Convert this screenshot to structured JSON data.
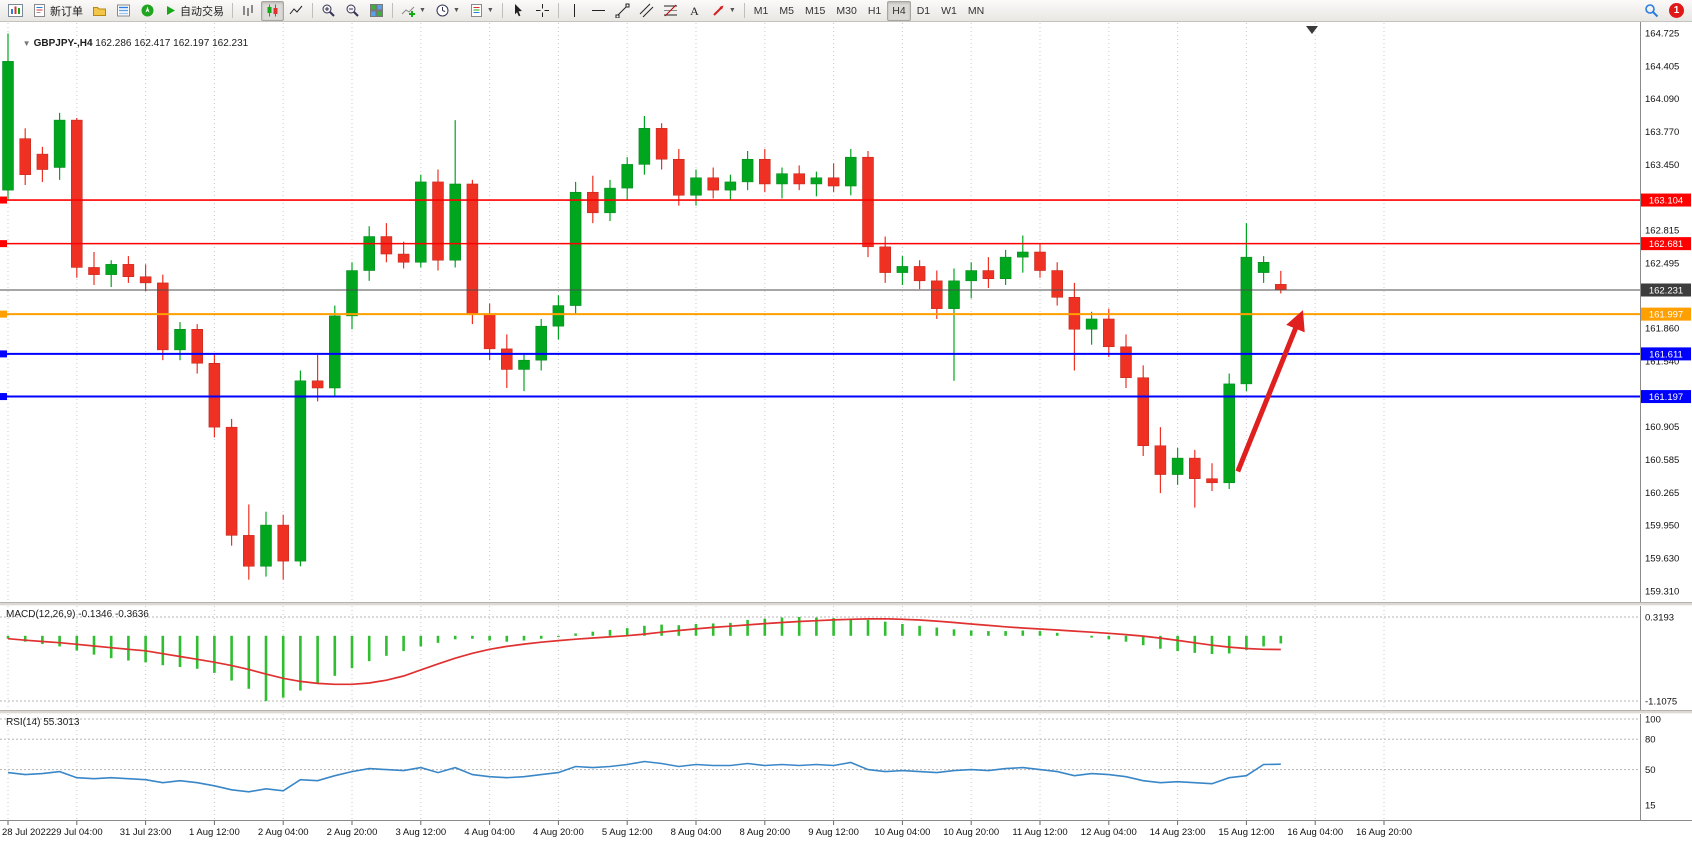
{
  "ui": {
    "caret": "▼",
    "expander": "▼"
  },
  "toolbar": {
    "new_order_label": "新订单",
    "auto_trading_label": "自动交易",
    "timeframes": [
      "M1",
      "M5",
      "M15",
      "M30",
      "H1",
      "H4",
      "D1",
      "W1",
      "MN"
    ],
    "active_timeframe": "H4",
    "notification_count": "1"
  },
  "chart": {
    "symbol_label": "GBPJPY-,H4",
    "ohlc_label": "162.286 162.417 162.197 162.231",
    "macd_header": "MACD(12,26,9) -0.1346 -0.3636",
    "rsi_header": "RSI(14) 55.3013",
    "colors": {
      "bull": "#00a71e",
      "bull_edge": "#00821a",
      "bear": "#ef3124",
      "bear_edge": "#bb2218",
      "macd_hist": "#2fbe2f",
      "macd_signal": "#e03131",
      "rsi_line": "#3a87c8",
      "grid": "#c9c9c9",
      "level": "#b5b5b5",
      "arrow": "#e01f1f",
      "bid_line": "#4d4d4d",
      "bid_box": "#3d3d3d"
    }
  },
  "chart_data": {
    "type": "candlestick",
    "symbol": "GBPJPY-",
    "timeframe": "H4",
    "candles": [
      [
        163.2,
        164.72,
        163.1,
        164.45
      ],
      [
        163.7,
        163.8,
        163.25,
        163.35
      ],
      [
        163.55,
        163.62,
        163.28,
        163.4
      ],
      [
        163.42,
        163.95,
        163.3,
        163.88
      ],
      [
        163.88,
        163.9,
        162.35,
        162.45
      ],
      [
        162.45,
        162.6,
        162.28,
        162.38
      ],
      [
        162.38,
        162.52,
        162.26,
        162.48
      ],
      [
        162.48,
        162.56,
        162.3,
        162.36
      ],
      [
        162.36,
        162.48,
        162.22,
        162.3
      ],
      [
        162.3,
        162.38,
        161.55,
        161.65
      ],
      [
        161.65,
        161.92,
        161.55,
        161.85
      ],
      [
        161.85,
        161.9,
        161.42,
        161.52
      ],
      [
        161.52,
        161.62,
        160.8,
        160.9
      ],
      [
        160.9,
        160.98,
        159.75,
        159.85
      ],
      [
        159.85,
        160.15,
        159.42,
        159.55
      ],
      [
        159.55,
        160.08,
        159.45,
        159.95
      ],
      [
        159.95,
        160.05,
        159.42,
        159.6
      ],
      [
        159.6,
        161.45,
        159.55,
        161.35
      ],
      [
        161.35,
        161.6,
        161.15,
        161.28
      ],
      [
        161.28,
        162.08,
        161.2,
        161.98
      ],
      [
        161.98,
        162.5,
        161.85,
        162.42
      ],
      [
        162.42,
        162.85,
        162.32,
        162.75
      ],
      [
        162.75,
        162.88,
        162.5,
        162.58
      ],
      [
        162.58,
        162.7,
        162.44,
        162.5
      ],
      [
        162.5,
        163.35,
        162.45,
        163.28
      ],
      [
        163.28,
        163.4,
        162.42,
        162.52
      ],
      [
        162.52,
        163.88,
        162.45,
        163.26
      ],
      [
        163.26,
        163.3,
        161.9,
        162.0
      ],
      [
        162.0,
        162.1,
        161.55,
        161.66
      ],
      [
        161.66,
        161.8,
        161.28,
        161.46
      ],
      [
        161.46,
        161.62,
        161.25,
        161.55
      ],
      [
        161.55,
        161.95,
        161.45,
        161.88
      ],
      [
        161.88,
        162.18,
        161.75,
        162.08
      ],
      [
        162.08,
        163.28,
        162.0,
        163.18
      ],
      [
        163.18,
        163.34,
        162.88,
        162.98
      ],
      [
        162.98,
        163.3,
        162.9,
        163.22
      ],
      [
        163.22,
        163.52,
        163.1,
        163.45
      ],
      [
        163.45,
        163.92,
        163.35,
        163.8
      ],
      [
        163.8,
        163.85,
        163.4,
        163.5
      ],
      [
        163.5,
        163.6,
        163.05,
        163.15
      ],
      [
        163.15,
        163.4,
        163.05,
        163.32
      ],
      [
        163.32,
        163.42,
        163.12,
        163.2
      ],
      [
        163.2,
        163.35,
        163.1,
        163.28
      ],
      [
        163.28,
        163.58,
        163.2,
        163.5
      ],
      [
        163.5,
        163.6,
        163.18,
        163.26
      ],
      [
        163.26,
        163.42,
        163.12,
        163.36
      ],
      [
        163.36,
        163.44,
        163.2,
        163.26
      ],
      [
        163.26,
        163.38,
        163.14,
        163.32
      ],
      [
        163.32,
        163.46,
        163.18,
        163.24
      ],
      [
        163.24,
        163.6,
        163.15,
        163.52
      ],
      [
        163.52,
        163.58,
        162.55,
        162.65
      ],
      [
        162.65,
        162.75,
        162.3,
        162.4
      ],
      [
        162.4,
        162.56,
        162.28,
        162.46
      ],
      [
        162.46,
        162.52,
        162.24,
        162.32
      ],
      [
        162.32,
        162.42,
        161.95,
        162.05
      ],
      [
        162.05,
        162.44,
        161.35,
        162.32
      ],
      [
        162.32,
        162.5,
        162.15,
        162.42
      ],
      [
        162.42,
        162.55,
        162.25,
        162.34
      ],
      [
        162.34,
        162.62,
        162.28,
        162.55
      ],
      [
        162.55,
        162.76,
        162.4,
        162.6
      ],
      [
        162.6,
        162.68,
        162.35,
        162.42
      ],
      [
        162.42,
        162.5,
        162.08,
        162.16
      ],
      [
        162.16,
        162.3,
        161.45,
        161.85
      ],
      [
        161.85,
        162.02,
        161.7,
        161.95
      ],
      [
        161.95,
        162.05,
        161.58,
        161.68
      ],
      [
        161.68,
        161.8,
        161.28,
        161.38
      ],
      [
        161.38,
        161.5,
        160.62,
        160.72
      ],
      [
        160.72,
        160.9,
        160.26,
        160.44
      ],
      [
        160.44,
        160.7,
        160.34,
        160.6
      ],
      [
        160.6,
        160.68,
        160.12,
        160.4
      ],
      [
        160.4,
        160.55,
        160.28,
        160.36
      ],
      [
        160.36,
        161.42,
        160.3,
        161.32
      ],
      [
        161.32,
        162.88,
        161.25,
        162.55
      ],
      [
        162.4,
        162.56,
        162.3,
        162.5
      ],
      [
        162.286,
        162.417,
        162.197,
        162.231
      ]
    ],
    "macd_values": [
      -0.05,
      -0.1,
      -0.14,
      -0.18,
      -0.25,
      -0.32,
      -0.38,
      -0.42,
      -0.45,
      -0.5,
      -0.53,
      -0.56,
      -0.63,
      -0.76,
      -0.9,
      -1.11,
      -1.05,
      -0.93,
      -0.8,
      -0.68,
      -0.55,
      -0.43,
      -0.34,
      -0.26,
      -0.18,
      -0.12,
      -0.06,
      -0.05,
      -0.08,
      -0.1,
      -0.08,
      -0.05,
      -0.02,
      0.04,
      0.07,
      0.1,
      0.13,
      0.17,
      0.19,
      0.18,
      0.2,
      0.21,
      0.22,
      0.27,
      0.29,
      0.31,
      0.32,
      0.31,
      0.3,
      0.29,
      0.27,
      0.24,
      0.2,
      0.17,
      0.14,
      0.11,
      0.09,
      0.08,
      0.08,
      0.09,
      0.08,
      0.05,
      0.0,
      -0.03,
      -0.06,
      -0.1,
      -0.16,
      -0.22,
      -0.26,
      -0.29,
      -0.31,
      -0.3,
      -0.24,
      -0.18,
      -0.13
    ],
    "rsi_values": [
      47,
      45,
      46,
      48,
      42,
      41,
      42,
      41,
      40,
      37,
      39,
      37,
      34,
      30,
      28,
      31,
      29,
      40,
      39,
      44,
      48,
      51,
      50,
      49,
      52,
      47,
      52,
      45,
      43,
      42,
      43,
      45,
      47,
      53,
      52,
      53,
      55,
      58,
      56,
      53,
      55,
      54,
      54,
      56,
      54,
      55,
      54,
      55,
      54,
      57,
      50,
      48,
      49,
      48,
      47,
      49,
      50,
      49,
      51,
      52,
      50,
      48,
      44,
      46,
      45,
      43,
      39,
      37,
      38,
      37,
      36,
      42,
      44,
      55,
      55.3
    ],
    "price_ticks": [
      "164.725",
      "164.405",
      "164.090",
      "163.770",
      "163.450",
      "162.815",
      "162.495",
      "161.860",
      "161.540",
      "160.905",
      "160.585",
      "160.265",
      "159.950",
      "159.630",
      "159.310"
    ],
    "macd_axis": [
      {
        "label": "0.3193",
        "value": 0.3193
      },
      {
        "label": "-1.1075",
        "value": -1.1075
      }
    ],
    "rsi_axis": [
      {
        "label": "100",
        "value": 100
      },
      {
        "label": "80",
        "value": 80
      },
      {
        "label": "50",
        "value": 50
      },
      {
        "label": "15",
        "value": 15
      }
    ],
    "rsi_levels": [
      100,
      80,
      50
    ],
    "time_labels": [
      "28 Jul 2022",
      "29 Jul 04:00",
      "31 Jul 23:00",
      "1 Aug 12:00",
      "2 Aug 04:00",
      "2 Aug 20:00",
      "3 Aug 12:00",
      "4 Aug 04:00",
      "4 Aug 20:00",
      "5 Aug 12:00",
      "8 Aug 04:00",
      "8 Aug 20:00",
      "9 Aug 12:00",
      "10 Aug 04:00",
      "10 Aug 20:00",
      "11 Aug 12:00",
      "12 Aug 04:00",
      "14 Aug 23:00",
      "15 Aug 12:00",
      "16 Aug 04:00",
      "16 Aug 20:00"
    ],
    "price_lines": [
      {
        "label": "163.104",
        "price": 163.104,
        "color": "#ff0000",
        "width": 1.6
      },
      {
        "label": "162.681",
        "price": 162.681,
        "color": "#ff0000",
        "width": 1.6
      },
      {
        "label": "161.997",
        "price": 161.997,
        "color": "#ff9f00",
        "width": 2
      },
      {
        "label": "161.611",
        "price": 161.611,
        "color": "#0000ff",
        "width": 2
      },
      {
        "label": "161.197",
        "price": 161.197,
        "color": "#0000ff",
        "width": 2
      }
    ],
    "bid_line": {
      "label": "162.231",
      "price": 162.231
    },
    "trend_arrow": {
      "from_index": 71.5,
      "from_price": 160.47,
      "to_index": 75.6,
      "to_price": 162.07
    }
  }
}
